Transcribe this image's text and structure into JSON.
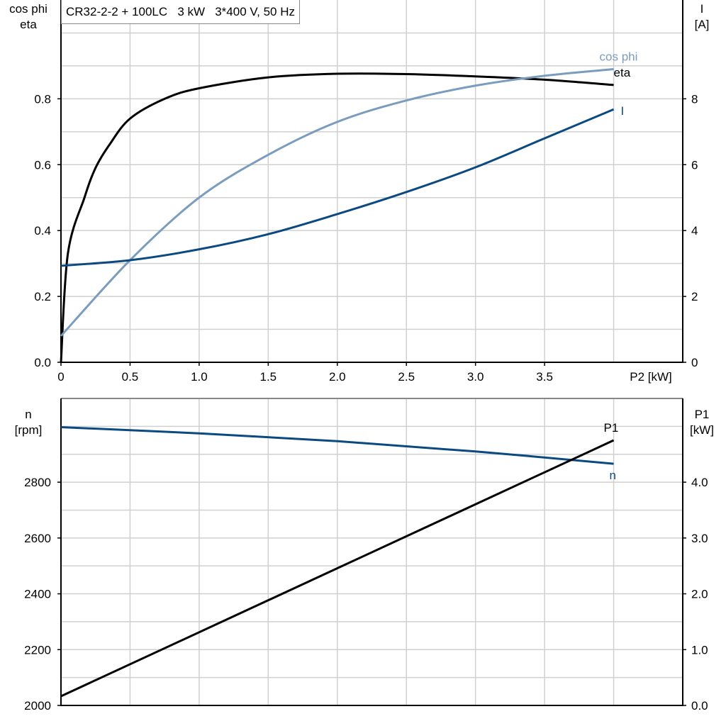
{
  "title": "CR32-2-2 + 100LC   3 kW   3*400 V, 50 Hz",
  "colors": {
    "eta": "#000000",
    "cos_phi": "#7a9cbf",
    "I": "#0b4a80",
    "n": "#0b4a80",
    "P1": "#000000",
    "grid": "#d0d0d0"
  },
  "chart_data": [
    {
      "type": "line",
      "x_label": "P2 [kW]",
      "xlim": [
        0,
        4.5
      ],
      "x_ticks": [
        "0",
        "0.5",
        "1.0",
        "1.5",
        "2.0",
        "2.5",
        "3.0",
        "3.5"
      ],
      "y_left_label": [
        "cos phi",
        "eta"
      ],
      "ylim_left": [
        0,
        1.1
      ],
      "y_left_ticks": [
        "0.0",
        "0.2",
        "0.4",
        "0.6",
        "0.8"
      ],
      "y_right_label": [
        "I",
        "[A]"
      ],
      "ylim_right": [
        0,
        11
      ],
      "y_right_ticks": [
        "0",
        "2",
        "4",
        "6",
        "8"
      ],
      "grid": true,
      "series": [
        {
          "name": "eta",
          "axis": "left",
          "x": [
            0,
            0.05,
            0.17,
            0.25,
            0.35,
            0.5,
            0.75,
            1.0,
            1.5,
            2.0,
            2.5,
            3.0,
            3.5,
            4.0
          ],
          "y": [
            0,
            0.33,
            0.5,
            0.59,
            0.66,
            0.74,
            0.8,
            0.832,
            0.865,
            0.876,
            0.875,
            0.868,
            0.858,
            0.842
          ]
        },
        {
          "name": "cos phi",
          "axis": "left",
          "x": [
            0,
            0.5,
            1.0,
            1.5,
            2.0,
            2.5,
            3.0,
            3.5,
            4.0
          ],
          "y": [
            0.08,
            0.31,
            0.5,
            0.63,
            0.73,
            0.795,
            0.84,
            0.87,
            0.89
          ]
        },
        {
          "name": "I",
          "axis": "right",
          "x": [
            0,
            0.5,
            1.0,
            1.5,
            2.0,
            2.5,
            3.0,
            3.5,
            4.0
          ],
          "y": [
            2.93,
            3.1,
            3.43,
            3.89,
            4.5,
            5.17,
            5.92,
            6.8,
            7.68
          ]
        }
      ]
    },
    {
      "type": "line",
      "xlim": [
        0,
        4.5
      ],
      "y_left_label": [
        "n",
        "[rpm]"
      ],
      "ylim_left": [
        2000,
        3100
      ],
      "y_left_ticks": [
        "2000",
        "2200",
        "2400",
        "2600",
        "2800"
      ],
      "y_right_label": [
        "P1",
        "[kW]"
      ],
      "ylim_right": [
        0,
        5.5
      ],
      "y_right_ticks": [
        "0.0",
        "1.0",
        "2.0",
        "3.0",
        "4.0"
      ],
      "grid": true,
      "series": [
        {
          "name": "n",
          "axis": "left",
          "x": [
            0,
            1.0,
            2.0,
            3.0,
            4.0
          ],
          "y": [
            2997,
            2975,
            2947,
            2910,
            2866
          ]
        },
        {
          "name": "P1",
          "axis": "right",
          "x": [
            0,
            4.0
          ],
          "y": [
            0.165,
            4.75
          ]
        }
      ]
    }
  ]
}
